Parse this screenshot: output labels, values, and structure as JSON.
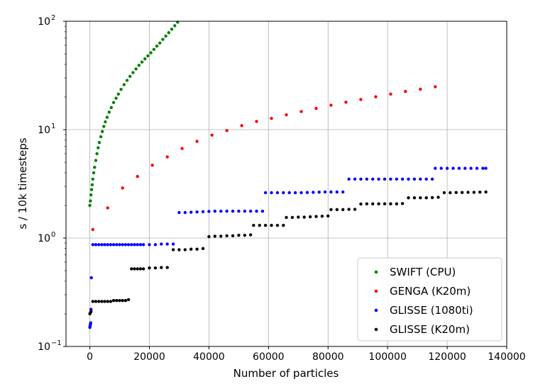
{
  "chart_data": {
    "type": "scatter",
    "title": "",
    "xlabel": "Number of particles",
    "ylabel": "s / 10k timesteps",
    "xlim": [
      -8000,
      140000
    ],
    "ylim": [
      0.1,
      100
    ],
    "yscale": "log",
    "grid": true,
    "legend_position": "bottom-right",
    "x_ticks": [
      {
        "value": 0,
        "label": "0"
      },
      {
        "value": 20000,
        "label": "20000"
      },
      {
        "value": 40000,
        "label": "40000"
      },
      {
        "value": 60000,
        "label": "60000"
      },
      {
        "value": 80000,
        "label": "80000"
      },
      {
        "value": 100000,
        "label": "100000"
      },
      {
        "value": 120000,
        "label": "120000"
      },
      {
        "value": 140000,
        "label": "140000"
      }
    ],
    "y_ticks": [
      {
        "value": 0.1,
        "base": "10",
        "exp": "−1"
      },
      {
        "value": 1,
        "base": "10",
        "exp": "0"
      },
      {
        "value": 10,
        "base": "10",
        "exp": "1"
      },
      {
        "value": 100,
        "base": "10",
        "exp": "2"
      }
    ],
    "series": [
      {
        "name": "SWIFT (CPU)",
        "color": "#008000",
        "points": [
          [
            0,
            2.0
          ],
          [
            200,
            2.2
          ],
          [
            400,
            2.5
          ],
          [
            600,
            2.8
          ],
          [
            800,
            3.1
          ],
          [
            1000,
            3.5
          ],
          [
            1300,
            4.0
          ],
          [
            1600,
            4.5
          ],
          [
            2000,
            5.2
          ],
          [
            2400,
            6.0
          ],
          [
            2800,
            6.8
          ],
          [
            3200,
            7.6
          ],
          [
            3700,
            8.6
          ],
          [
            4200,
            9.6
          ],
          [
            4700,
            10.7
          ],
          [
            5200,
            11.8
          ],
          [
            5800,
            13.0
          ],
          [
            6500,
            14.5
          ],
          [
            7200,
            16.0
          ],
          [
            8000,
            17.8
          ],
          [
            8800,
            19.5
          ],
          [
            9600,
            21.3
          ],
          [
            10500,
            23.5
          ],
          [
            11500,
            26.0
          ],
          [
            12500,
            28.5
          ],
          [
            13500,
            31.0
          ],
          [
            14500,
            33.6
          ],
          [
            15500,
            36.3
          ],
          [
            16500,
            39.2
          ],
          [
            17500,
            42.0
          ],
          [
            18500,
            45.0
          ],
          [
            19500,
            48.0
          ],
          [
            20500,
            51.3
          ],
          [
            21500,
            55.0
          ],
          [
            22500,
            59.0
          ],
          [
            23500,
            63.0
          ],
          [
            24500,
            68.0
          ],
          [
            25500,
            73.0
          ],
          [
            26500,
            78.5
          ],
          [
            27500,
            84.5
          ],
          [
            28500,
            91.0
          ],
          [
            29500,
            98.0
          ]
        ]
      },
      {
        "name": "GENGA (K20m)",
        "color": "#ff0000",
        "points": [
          [
            1000,
            1.2
          ],
          [
            6000,
            1.9
          ],
          [
            11000,
            2.9
          ],
          [
            16000,
            3.7
          ],
          [
            21000,
            4.7
          ],
          [
            26000,
            5.6
          ],
          [
            31000,
            6.7
          ],
          [
            36000,
            7.8
          ],
          [
            41000,
            8.9
          ],
          [
            46000,
            9.8
          ],
          [
            51000,
            10.9
          ],
          [
            56000,
            11.9
          ],
          [
            61000,
            12.7
          ],
          [
            66000,
            13.7
          ],
          [
            71000,
            14.7
          ],
          [
            76000,
            15.7
          ],
          [
            81000,
            16.8
          ],
          [
            86000,
            17.9
          ],
          [
            91000,
            19.0
          ],
          [
            96000,
            20.1
          ],
          [
            101000,
            21.3
          ],
          [
            106000,
            22.5
          ],
          [
            111000,
            23.6
          ],
          [
            116000,
            24.9
          ]
        ]
      },
      {
        "name": "GLISSE (1080ti)",
        "color": "#0000ff",
        "points": [
          [
            0,
            0.15
          ],
          [
            100,
            0.155
          ],
          [
            200,
            0.16
          ],
          [
            300,
            0.165
          ],
          [
            400,
            0.22
          ],
          [
            500,
            0.43
          ],
          [
            1000,
            0.87
          ],
          [
            2000,
            0.87
          ],
          [
            3000,
            0.87
          ],
          [
            4000,
            0.87
          ],
          [
            5000,
            0.87
          ],
          [
            6000,
            0.87
          ],
          [
            7000,
            0.87
          ],
          [
            8000,
            0.87
          ],
          [
            9000,
            0.87
          ],
          [
            10000,
            0.87
          ],
          [
            11000,
            0.87
          ],
          [
            12000,
            0.87
          ],
          [
            13000,
            0.87
          ],
          [
            14000,
            0.87
          ],
          [
            15000,
            0.87
          ],
          [
            16000,
            0.87
          ],
          [
            17000,
            0.87
          ],
          [
            18000,
            0.87
          ],
          [
            20000,
            0.87
          ],
          [
            22000,
            0.87
          ],
          [
            24000,
            0.88
          ],
          [
            26000,
            0.88
          ],
          [
            28000,
            0.88
          ],
          [
            30000,
            1.72
          ],
          [
            32000,
            1.72
          ],
          [
            34000,
            1.73
          ],
          [
            36000,
            1.74
          ],
          [
            38000,
            1.75
          ],
          [
            40000,
            1.76
          ],
          [
            42000,
            1.77
          ],
          [
            44000,
            1.77
          ],
          [
            46000,
            1.77
          ],
          [
            48000,
            1.77
          ],
          [
            50000,
            1.77
          ],
          [
            52000,
            1.77
          ],
          [
            54000,
            1.77
          ],
          [
            56000,
            1.77
          ],
          [
            58000,
            1.77
          ],
          [
            59000,
            2.62
          ],
          [
            61000,
            2.62
          ],
          [
            63000,
            2.62
          ],
          [
            65000,
            2.62
          ],
          [
            67000,
            2.62
          ],
          [
            69000,
            2.62
          ],
          [
            71000,
            2.62
          ],
          [
            73000,
            2.63
          ],
          [
            75000,
            2.64
          ],
          [
            77000,
            2.65
          ],
          [
            79000,
            2.66
          ],
          [
            81000,
            2.66
          ],
          [
            83000,
            2.66
          ],
          [
            85000,
            2.66
          ],
          [
            87000,
            3.5
          ],
          [
            89000,
            3.5
          ],
          [
            91000,
            3.5
          ],
          [
            93000,
            3.5
          ],
          [
            95000,
            3.5
          ],
          [
            97000,
            3.5
          ],
          [
            99000,
            3.5
          ],
          [
            101000,
            3.5
          ],
          [
            103000,
            3.5
          ],
          [
            105000,
            3.5
          ],
          [
            107000,
            3.5
          ],
          [
            109000,
            3.5
          ],
          [
            111000,
            3.5
          ],
          [
            113000,
            3.5
          ],
          [
            115000,
            3.5
          ],
          [
            116000,
            4.4
          ],
          [
            118000,
            4.4
          ],
          [
            120000,
            4.4
          ],
          [
            122000,
            4.4
          ],
          [
            124000,
            4.4
          ],
          [
            126000,
            4.4
          ],
          [
            128000,
            4.4
          ],
          [
            130000,
            4.4
          ],
          [
            132000,
            4.4
          ],
          [
            133000,
            4.4
          ]
        ]
      },
      {
        "name": "GLISSE (K20m)",
        "color": "#000000",
        "points": [
          [
            0,
            0.2
          ],
          [
            200,
            0.205
          ],
          [
            400,
            0.21
          ],
          [
            1000,
            0.26
          ],
          [
            2000,
            0.26
          ],
          [
            3000,
            0.26
          ],
          [
            4000,
            0.26
          ],
          [
            5000,
            0.26
          ],
          [
            6000,
            0.26
          ],
          [
            7000,
            0.26
          ],
          [
            8000,
            0.265
          ],
          [
            9000,
            0.265
          ],
          [
            10000,
            0.265
          ],
          [
            11000,
            0.265
          ],
          [
            12000,
            0.265
          ],
          [
            13000,
            0.27
          ],
          [
            14000,
            0.52
          ],
          [
            15000,
            0.52
          ],
          [
            16000,
            0.52
          ],
          [
            17000,
            0.52
          ],
          [
            18000,
            0.52
          ],
          [
            20000,
            0.53
          ],
          [
            22000,
            0.53
          ],
          [
            24000,
            0.535
          ],
          [
            26000,
            0.535
          ],
          [
            28000,
            0.78
          ],
          [
            30000,
            0.78
          ],
          [
            32000,
            0.78
          ],
          [
            34000,
            0.79
          ],
          [
            36000,
            0.79
          ],
          [
            38000,
            0.8
          ],
          [
            40000,
            1.03
          ],
          [
            42000,
            1.04
          ],
          [
            44000,
            1.04
          ],
          [
            46000,
            1.05
          ],
          [
            48000,
            1.05
          ],
          [
            50000,
            1.06
          ],
          [
            52000,
            1.06
          ],
          [
            54000,
            1.07
          ],
          [
            55000,
            1.31
          ],
          [
            57000,
            1.31
          ],
          [
            59000,
            1.31
          ],
          [
            61000,
            1.31
          ],
          [
            63000,
            1.31
          ],
          [
            65000,
            1.31
          ],
          [
            66000,
            1.55
          ],
          [
            68000,
            1.55
          ],
          [
            70000,
            1.56
          ],
          [
            72000,
            1.56
          ],
          [
            74000,
            1.57
          ],
          [
            76000,
            1.58
          ],
          [
            78000,
            1.59
          ],
          [
            80000,
            1.6
          ],
          [
            81000,
            1.83
          ],
          [
            83000,
            1.83
          ],
          [
            85000,
            1.83
          ],
          [
            87000,
            1.84
          ],
          [
            89000,
            1.84
          ],
          [
            91000,
            2.06
          ],
          [
            93000,
            2.07
          ],
          [
            95000,
            2.07
          ],
          [
            97000,
            2.07
          ],
          [
            99000,
            2.07
          ],
          [
            101000,
            2.07
          ],
          [
            103000,
            2.07
          ],
          [
            105000,
            2.08
          ],
          [
            107000,
            2.35
          ],
          [
            109000,
            2.35
          ],
          [
            111000,
            2.35
          ],
          [
            113000,
            2.35
          ],
          [
            115000,
            2.36
          ],
          [
            117000,
            2.38
          ],
          [
            119000,
            2.62
          ],
          [
            121000,
            2.62
          ],
          [
            123000,
            2.63
          ],
          [
            125000,
            2.63
          ],
          [
            127000,
            2.64
          ],
          [
            129000,
            2.64
          ],
          [
            131000,
            2.65
          ],
          [
            133000,
            2.66
          ]
        ]
      }
    ]
  }
}
